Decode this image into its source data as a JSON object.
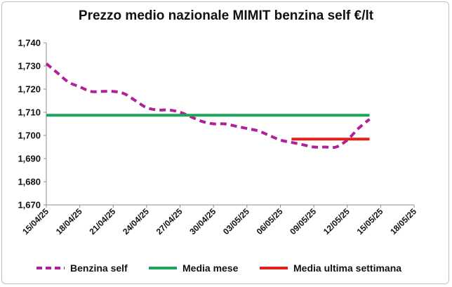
{
  "chart_data": {
    "type": "line",
    "title": "Prezzo medio nazionale MIMIT benzina self €/lt",
    "xlabel": "",
    "ylabel": "",
    "ylim": [
      1.67,
      1.74
    ],
    "y_ticks": [
      "1,670",
      "1,680",
      "1,690",
      "1,700",
      "1,710",
      "1,720",
      "1,730",
      "1,740"
    ],
    "x_ticks": [
      "15/04/25",
      "18/04/25",
      "21/04/25",
      "24/04/25",
      "27/04/25",
      "30/04/25",
      "03/05/25",
      "06/05/25",
      "09/05/25",
      "12/05/25",
      "15/05/25",
      "18/05/25"
    ],
    "x_range": [
      "2025-04-15",
      "2025-05-18"
    ],
    "grid": false,
    "legend_position": "bottom",
    "series": [
      {
        "name": "Benzina self",
        "color": "#b0209b",
        "style": "dashed",
        "points": [
          {
            "x": "2025-04-15",
            "y": 1.731
          },
          {
            "x": "2025-04-16",
            "y": 1.727
          },
          {
            "x": "2025-04-17",
            "y": 1.723
          },
          {
            "x": "2025-04-18",
            "y": 1.721
          },
          {
            "x": "2025-04-19",
            "y": 1.719
          },
          {
            "x": "2025-04-20",
            "y": 1.719
          },
          {
            "x": "2025-04-21",
            "y": 1.719
          },
          {
            "x": "2025-04-22",
            "y": 1.718
          },
          {
            "x": "2025-04-23",
            "y": 1.715
          },
          {
            "x": "2025-04-24",
            "y": 1.712
          },
          {
            "x": "2025-04-25",
            "y": 1.711
          },
          {
            "x": "2025-04-26",
            "y": 1.711
          },
          {
            "x": "2025-04-27",
            "y": 1.71
          },
          {
            "x": "2025-04-28",
            "y": 1.708
          },
          {
            "x": "2025-04-29",
            "y": 1.706
          },
          {
            "x": "2025-04-30",
            "y": 1.705
          },
          {
            "x": "2025-05-01",
            "y": 1.705
          },
          {
            "x": "2025-05-02",
            "y": 1.704
          },
          {
            "x": "2025-05-03",
            "y": 1.703
          },
          {
            "x": "2025-05-04",
            "y": 1.702
          },
          {
            "x": "2025-05-05",
            "y": 1.7
          },
          {
            "x": "2025-05-06",
            "y": 1.698
          },
          {
            "x": "2025-05-07",
            "y": 1.697
          },
          {
            "x": "2025-05-08",
            "y": 1.696
          },
          {
            "x": "2025-05-09",
            "y": 1.695
          },
          {
            "x": "2025-05-10",
            "y": 1.695
          },
          {
            "x": "2025-05-11",
            "y": 1.695
          },
          {
            "x": "2025-05-12",
            "y": 1.698
          },
          {
            "x": "2025-05-13",
            "y": 1.703
          },
          {
            "x": "2025-05-14",
            "y": 1.707
          }
        ]
      },
      {
        "name": "Media mese",
        "color": "#1fa55b",
        "style": "solid",
        "points": [
          {
            "x": "2025-04-15",
            "y": 1.7087
          },
          {
            "x": "2025-05-14",
            "y": 1.7087
          }
        ]
      },
      {
        "name": "Media ultima settimana",
        "color": "#e0201b",
        "style": "solid",
        "points": [
          {
            "x": "2025-05-07",
            "y": 1.6984
          },
          {
            "x": "2025-05-14",
            "y": 1.6984
          }
        ]
      }
    ]
  }
}
